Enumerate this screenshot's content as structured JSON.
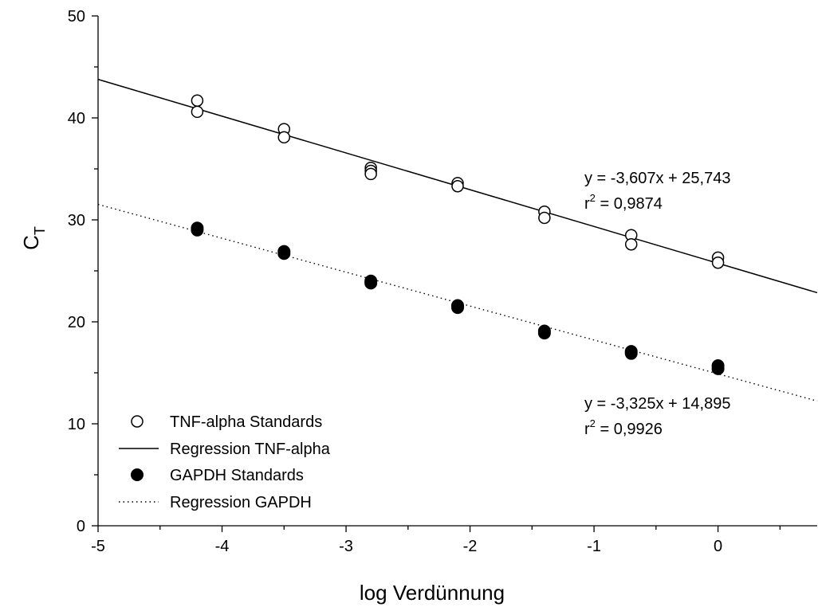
{
  "chart_data": {
    "type": "scatter",
    "title": "",
    "xlabel": "log Verdünnung",
    "ylabel": {
      "main": "C",
      "sub": "T"
    },
    "xlim": [
      -5,
      0.8
    ],
    "ylim": [
      0,
      50
    ],
    "xticks": [
      "-5",
      "-4",
      "-3",
      "-2",
      "-1",
      "0"
    ],
    "yticks": [
      "0",
      "10",
      "20",
      "30",
      "40",
      "50"
    ],
    "grid": false,
    "legend_position": "bottom-left",
    "series": [
      {
        "name": "TNF-alpha Standards",
        "kind": "points",
        "marker": "open-circle",
        "points": [
          [
            -4.2,
            41.7
          ],
          [
            -4.2,
            40.6
          ],
          [
            -3.5,
            38.9
          ],
          [
            -3.5,
            38.1
          ],
          [
            -2.8,
            35.1
          ],
          [
            -2.8,
            34.8
          ],
          [
            -2.8,
            34.5
          ],
          [
            -2.1,
            33.6
          ],
          [
            -2.1,
            33.3
          ],
          [
            -1.4,
            30.8
          ],
          [
            -1.4,
            30.2
          ],
          [
            -0.7,
            28.5
          ],
          [
            -0.7,
            27.6
          ],
          [
            0.0,
            26.3
          ],
          [
            0.0,
            25.8
          ]
        ]
      },
      {
        "name": "Regression TNF-alpha",
        "kind": "line",
        "style": "solid",
        "slope": -3.607,
        "intercept": 25.743,
        "x_range": [
          -5,
          0.8
        ]
      },
      {
        "name": "GAPDH Standards",
        "kind": "points",
        "marker": "filled-circle",
        "points": [
          [
            -4.2,
            29.2
          ],
          [
            -4.2,
            29.0
          ],
          [
            -3.5,
            26.9
          ],
          [
            -3.5,
            26.7
          ],
          [
            -2.8,
            24.0
          ],
          [
            -2.8,
            23.8
          ],
          [
            -2.1,
            21.6
          ],
          [
            -2.1,
            21.4
          ],
          [
            -1.4,
            19.1
          ],
          [
            -1.4,
            18.9
          ],
          [
            -0.7,
            17.1
          ],
          [
            -0.7,
            16.9
          ],
          [
            0.0,
            15.7
          ],
          [
            0.0,
            15.4
          ]
        ]
      },
      {
        "name": "Regression GAPDH",
        "kind": "line",
        "style": "dotted",
        "slope": -3.325,
        "intercept": 14.895,
        "x_range": [
          -5,
          0.8
        ]
      }
    ],
    "annotations": [
      {
        "text": "y = -3,607x + 25,743",
        "r2_label": "r",
        "r2_exp": "2",
        "r2_value": " = 0,9874",
        "series": "Regression TNF-alpha"
      },
      {
        "text": "y = -3,325x + 14,895",
        "r2_label": "r",
        "r2_exp": "2",
        "r2_value": " = 0,9926",
        "series": "Regression GAPDH"
      }
    ]
  }
}
